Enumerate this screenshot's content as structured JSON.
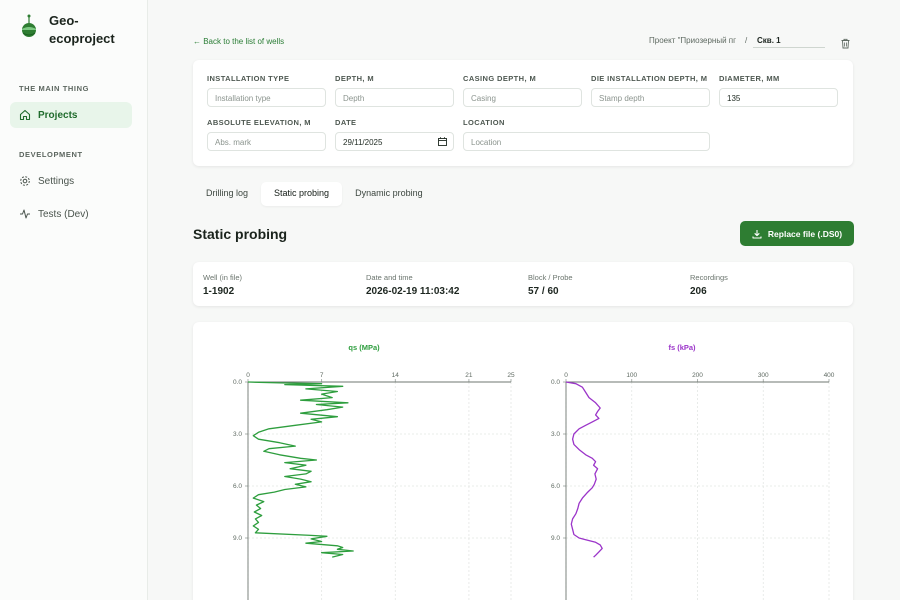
{
  "app": {
    "name": "Geo-ecoproject"
  },
  "sidebar": {
    "section_main": "THE MAIN THING",
    "section_dev": "DEVELOPMENT",
    "items": [
      {
        "label": "Projects",
        "icon": "home-icon",
        "active": true
      },
      {
        "label": "Settings",
        "icon": "gear-icon",
        "active": false
      },
      {
        "label": "Tests (Dev)",
        "icon": "activity-icon",
        "active": false
      }
    ]
  },
  "header": {
    "back_label": "← Back to the list of wells",
    "project_crumb": "Проект \"Приозерный пг",
    "separator": "/",
    "well_value": "Скв. 1"
  },
  "form": {
    "installation_type": {
      "label": "INSTALLATION TYPE",
      "placeholder": "Installation type",
      "value": ""
    },
    "depth": {
      "label": "DEPTH, M",
      "placeholder": "Depth",
      "value": ""
    },
    "casing_depth": {
      "label": "CASING DEPTH, M",
      "placeholder": "Casing",
      "value": ""
    },
    "die_depth": {
      "label": "DIE INSTALLATION DEPTH, M",
      "placeholder": "Stamp depth",
      "value": ""
    },
    "diameter": {
      "label": "DIAMETER, MM",
      "placeholder": "",
      "value": "135"
    },
    "abs_elevation": {
      "label": "ABSOLUTE ELEVATION, M",
      "placeholder": "Abs. mark",
      "value": ""
    },
    "date": {
      "label": "DATE",
      "value": "29/11/2025"
    },
    "location": {
      "label": "LOCATION",
      "placeholder": "Location",
      "value": ""
    }
  },
  "tabs": [
    {
      "label": "Drilling log",
      "active": false
    },
    {
      "label": "Static probing",
      "active": true
    },
    {
      "label": "Dynamic probing",
      "active": false
    }
  ],
  "section": {
    "title": "Static probing",
    "replace_button": "Replace file (.DS0)"
  },
  "info": {
    "well_label": "Well (in file)",
    "well_value": "1-1902",
    "datetime_label": "Date and time",
    "datetime_value": "2026-02-19 11:03:42",
    "block_label": "Block / Probe",
    "block_value": "57 / 60",
    "recordings_label": "Recordings",
    "recordings_value": "206"
  },
  "colors": {
    "accent": "#2e7d32",
    "qs_line": "#2e9e3e",
    "fs_line": "#9b34c9"
  },
  "chart_data": [
    {
      "type": "line",
      "title": "qs (MPa)",
      "orientation": "depth-vertical",
      "x_ticks": [
        0,
        7,
        14,
        21,
        25
      ],
      "y_ticks": [
        0.0,
        3.0,
        6.0,
        9.0
      ],
      "xlim": [
        0,
        25
      ],
      "ylim": [
        0,
        12
      ],
      "color": "#2e9e3e",
      "points": [
        [
          0,
          0.0
        ],
        [
          3,
          0.05
        ],
        [
          7,
          0.1
        ],
        [
          3.5,
          0.15
        ],
        [
          9,
          0.25
        ],
        [
          5.5,
          0.4
        ],
        [
          8.5,
          0.55
        ],
        [
          7,
          0.7
        ],
        [
          8,
          0.9
        ],
        [
          5,
          1.05
        ],
        [
          9.5,
          1.2
        ],
        [
          6.5,
          1.3
        ],
        [
          9,
          1.45
        ],
        [
          7.5,
          1.6
        ],
        [
          5,
          1.8
        ],
        [
          8.5,
          2.0
        ],
        [
          6,
          2.15
        ],
        [
          7,
          2.3
        ],
        [
          4.5,
          2.5
        ],
        [
          2,
          2.7
        ],
        [
          1,
          2.9
        ],
        [
          0.5,
          3.1
        ],
        [
          1,
          3.3
        ],
        [
          3,
          3.5
        ],
        [
          4.5,
          3.7
        ],
        [
          2,
          3.85
        ],
        [
          1.5,
          4.0
        ],
        [
          3,
          4.2
        ],
        [
          5,
          4.4
        ],
        [
          6.5,
          4.5
        ],
        [
          3.5,
          4.65
        ],
        [
          5.5,
          4.8
        ],
        [
          4,
          5.0
        ],
        [
          6,
          5.15
        ],
        [
          5.5,
          5.3
        ],
        [
          3.5,
          5.45
        ],
        [
          5,
          5.6
        ],
        [
          6,
          5.75
        ],
        [
          4.5,
          5.9
        ],
        [
          5.5,
          6.05
        ],
        [
          3.5,
          6.2
        ],
        [
          2.5,
          6.35
        ],
        [
          1,
          6.5
        ],
        [
          0.5,
          6.7
        ],
        [
          1.5,
          6.9
        ],
        [
          0.8,
          7.1
        ],
        [
          1.2,
          7.3
        ],
        [
          0.6,
          7.5
        ],
        [
          1.3,
          7.7
        ],
        [
          0.7,
          7.9
        ],
        [
          1,
          8.1
        ],
        [
          0.5,
          8.3
        ],
        [
          1,
          8.5
        ],
        [
          0.7,
          8.7
        ],
        [
          6,
          8.85
        ],
        [
          7.5,
          8.9
        ],
        [
          6,
          9.05
        ],
        [
          7,
          9.2
        ],
        [
          5.5,
          9.3
        ],
        [
          8.5,
          9.45
        ],
        [
          9,
          9.55
        ],
        [
          8.5,
          9.65
        ],
        [
          10,
          9.75
        ],
        [
          7,
          9.85
        ],
        [
          9,
          9.95
        ],
        [
          8,
          10.1
        ]
      ]
    },
    {
      "type": "line",
      "title": "fs (kPa)",
      "orientation": "depth-vertical",
      "x_ticks": [
        0,
        100,
        200,
        300,
        400
      ],
      "y_ticks": [
        0.0,
        3.0,
        6.0,
        9.0
      ],
      "xlim": [
        0,
        400
      ],
      "ylim": [
        0,
        12
      ],
      "color": "#9b34c9",
      "points": [
        [
          0,
          0.0
        ],
        [
          15,
          0.1
        ],
        [
          25,
          0.3
        ],
        [
          30,
          0.6
        ],
        [
          35,
          0.9
        ],
        [
          45,
          1.2
        ],
        [
          52,
          1.5
        ],
        [
          48,
          1.7
        ],
        [
          45,
          1.9
        ],
        [
          50,
          2.1
        ],
        [
          40,
          2.3
        ],
        [
          30,
          2.5
        ],
        [
          20,
          2.7
        ],
        [
          12,
          3.0
        ],
        [
          10,
          3.3
        ],
        [
          12,
          3.6
        ],
        [
          20,
          3.9
        ],
        [
          30,
          4.2
        ],
        [
          40,
          4.4
        ],
        [
          45,
          4.6
        ],
        [
          42,
          4.8
        ],
        [
          48,
          5.0
        ],
        [
          44,
          5.3
        ],
        [
          46,
          5.6
        ],
        [
          43,
          5.9
        ],
        [
          40,
          6.1
        ],
        [
          32,
          6.4
        ],
        [
          25,
          6.7
        ],
        [
          20,
          7.0
        ],
        [
          18,
          7.3
        ],
        [
          15,
          7.6
        ],
        [
          10,
          7.9
        ],
        [
          8,
          8.2
        ],
        [
          10,
          8.5
        ],
        [
          12,
          8.8
        ],
        [
          20,
          9.0
        ],
        [
          30,
          9.1
        ],
        [
          45,
          9.25
        ],
        [
          52,
          9.4
        ],
        [
          55,
          9.6
        ],
        [
          50,
          9.8
        ],
        [
          45,
          10.0
        ],
        [
          42,
          10.1
        ]
      ]
    }
  ]
}
